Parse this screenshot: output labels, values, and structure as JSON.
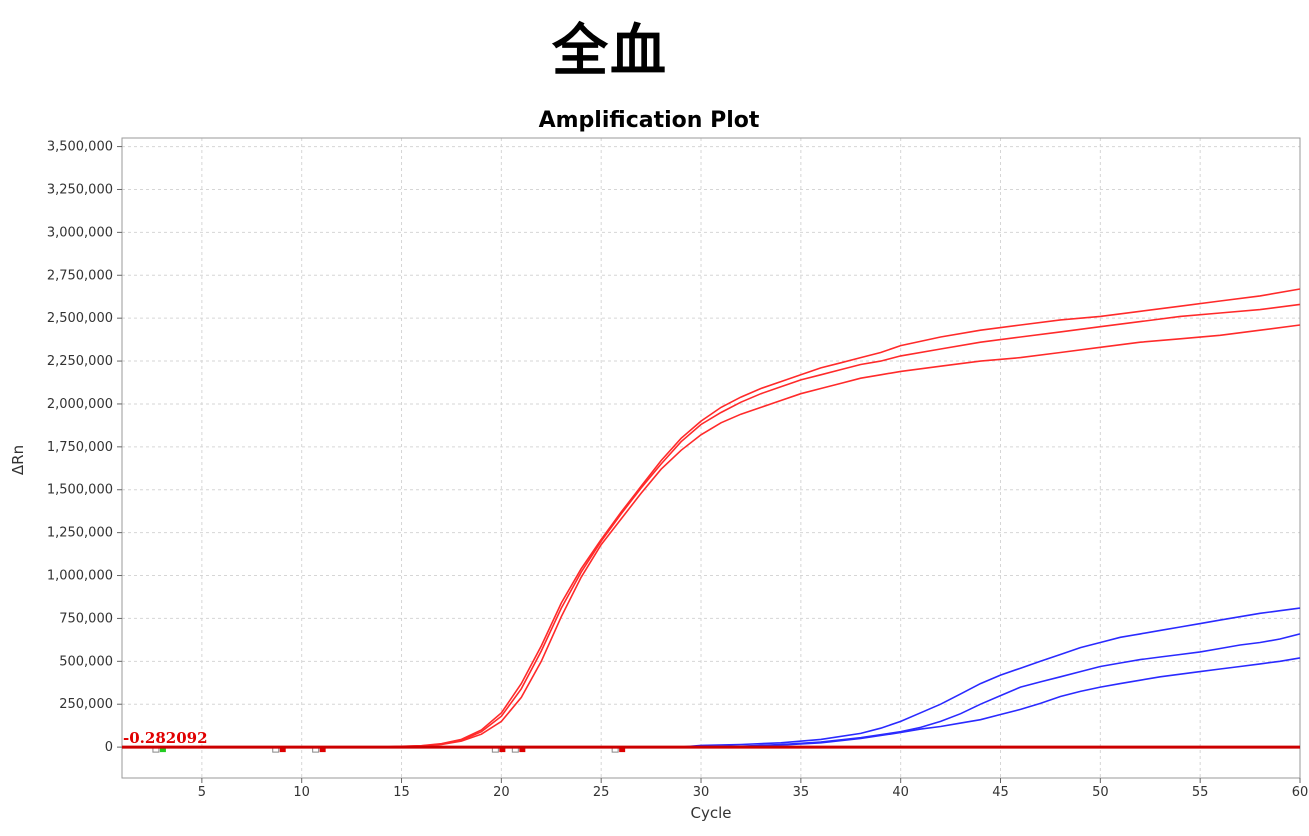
{
  "page_title": "全血",
  "chart_data": {
    "type": "line",
    "title": "Amplification Plot",
    "xlabel": "Cycle",
    "ylabel": "ΔRn",
    "xlim": [
      1,
      60
    ],
    "ylim": [
      -180000,
      3550000
    ],
    "x_ticks": [
      5,
      10,
      15,
      20,
      25,
      30,
      35,
      40,
      45,
      50,
      55,
      60
    ],
    "y_ticks": [
      0,
      250000,
      500000,
      750000,
      1000000,
      1250000,
      1500000,
      1750000,
      2000000,
      2250000,
      2500000,
      2750000,
      3000000,
      3250000,
      3500000
    ],
    "y_tick_labels": [
      "0",
      "250,000",
      "500,000",
      "750,000",
      "1,000,000",
      "1,250,000",
      "1,500,000",
      "1,750,000",
      "2,000,000",
      "2,250,000",
      "2,500,000",
      "2,750,000",
      "3,000,000",
      "3,250,000",
      "3,500,000"
    ],
    "grid": true,
    "threshold": {
      "label": "-0.282092",
      "value": 0,
      "color": "#cc0000"
    },
    "series": [
      {
        "color": "#ff2a2a",
        "points": [
          [
            1,
            0
          ],
          [
            14,
            0
          ],
          [
            15,
            5000
          ],
          [
            16,
            8000
          ],
          [
            17,
            20000
          ],
          [
            18,
            45000
          ],
          [
            19,
            100000
          ],
          [
            20,
            200000
          ],
          [
            21,
            370000
          ],
          [
            22,
            590000
          ],
          [
            23,
            840000
          ],
          [
            24,
            1040000
          ],
          [
            25,
            1210000
          ],
          [
            26,
            1370000
          ],
          [
            27,
            1520000
          ],
          [
            28,
            1670000
          ],
          [
            29,
            1800000
          ],
          [
            30,
            1900000
          ],
          [
            31,
            1980000
          ],
          [
            32,
            2040000
          ],
          [
            33,
            2090000
          ],
          [
            34,
            2130000
          ],
          [
            35,
            2170000
          ],
          [
            36,
            2210000
          ],
          [
            37,
            2240000
          ],
          [
            38,
            2270000
          ],
          [
            39,
            2300000
          ],
          [
            40,
            2340000
          ],
          [
            42,
            2390000
          ],
          [
            44,
            2430000
          ],
          [
            46,
            2460000
          ],
          [
            48,
            2490000
          ],
          [
            50,
            2510000
          ],
          [
            52,
            2540000
          ],
          [
            54,
            2570000
          ],
          [
            56,
            2600000
          ],
          [
            58,
            2630000
          ],
          [
            60,
            2670000
          ]
        ]
      },
      {
        "color": "#ff2a2a",
        "points": [
          [
            1,
            0
          ],
          [
            14,
            0
          ],
          [
            15,
            4000
          ],
          [
            16,
            7000
          ],
          [
            17,
            18000
          ],
          [
            18,
            40000
          ],
          [
            19,
            90000
          ],
          [
            20,
            180000
          ],
          [
            21,
            340000
          ],
          [
            22,
            560000
          ],
          [
            23,
            810000
          ],
          [
            24,
            1020000
          ],
          [
            25,
            1200000
          ],
          [
            26,
            1360000
          ],
          [
            27,
            1510000
          ],
          [
            28,
            1650000
          ],
          [
            29,
            1780000
          ],
          [
            30,
            1880000
          ],
          [
            31,
            1950000
          ],
          [
            32,
            2010000
          ],
          [
            33,
            2060000
          ],
          [
            34,
            2100000
          ],
          [
            35,
            2140000
          ],
          [
            36,
            2170000
          ],
          [
            37,
            2200000
          ],
          [
            38,
            2230000
          ],
          [
            39,
            2250000
          ],
          [
            40,
            2280000
          ],
          [
            42,
            2320000
          ],
          [
            44,
            2360000
          ],
          [
            46,
            2390000
          ],
          [
            48,
            2420000
          ],
          [
            50,
            2450000
          ],
          [
            52,
            2480000
          ],
          [
            54,
            2510000
          ],
          [
            56,
            2530000
          ],
          [
            58,
            2550000
          ],
          [
            60,
            2580000
          ]
        ]
      },
      {
        "color": "#ff2a2a",
        "points": [
          [
            1,
            0
          ],
          [
            14,
            0
          ],
          [
            15,
            3000
          ],
          [
            16,
            6000
          ],
          [
            17,
            15000
          ],
          [
            18,
            35000
          ],
          [
            19,
            75000
          ],
          [
            20,
            150000
          ],
          [
            21,
            290000
          ],
          [
            22,
            500000
          ],
          [
            23,
            760000
          ],
          [
            24,
            990000
          ],
          [
            25,
            1180000
          ],
          [
            26,
            1330000
          ],
          [
            27,
            1480000
          ],
          [
            28,
            1620000
          ],
          [
            29,
            1730000
          ],
          [
            30,
            1820000
          ],
          [
            31,
            1890000
          ],
          [
            32,
            1940000
          ],
          [
            33,
            1980000
          ],
          [
            34,
            2020000
          ],
          [
            35,
            2060000
          ],
          [
            36,
            2090000
          ],
          [
            37,
            2120000
          ],
          [
            38,
            2150000
          ],
          [
            39,
            2170000
          ],
          [
            40,
            2190000
          ],
          [
            42,
            2220000
          ],
          [
            44,
            2250000
          ],
          [
            46,
            2270000
          ],
          [
            48,
            2300000
          ],
          [
            50,
            2330000
          ],
          [
            52,
            2360000
          ],
          [
            54,
            2380000
          ],
          [
            56,
            2400000
          ],
          [
            58,
            2430000
          ],
          [
            60,
            2460000
          ]
        ]
      },
      {
        "color": "#2a2aff",
        "points": [
          [
            1,
            0
          ],
          [
            29,
            0
          ],
          [
            30,
            10000
          ],
          [
            32,
            15000
          ],
          [
            34,
            25000
          ],
          [
            36,
            45000
          ],
          [
            38,
            80000
          ],
          [
            39,
            110000
          ],
          [
            40,
            150000
          ],
          [
            41,
            200000
          ],
          [
            42,
            250000
          ],
          [
            43,
            310000
          ],
          [
            44,
            370000
          ],
          [
            45,
            420000
          ],
          [
            46,
            460000
          ],
          [
            47,
            500000
          ],
          [
            48,
            540000
          ],
          [
            49,
            580000
          ],
          [
            50,
            610000
          ],
          [
            51,
            640000
          ],
          [
            52,
            660000
          ],
          [
            53,
            680000
          ],
          [
            54,
            700000
          ],
          [
            55,
            720000
          ],
          [
            56,
            740000
          ],
          [
            57,
            760000
          ],
          [
            58,
            780000
          ],
          [
            59,
            795000
          ],
          [
            60,
            810000
          ]
        ]
      },
      {
        "color": "#2a2aff",
        "points": [
          [
            1,
            0
          ],
          [
            30,
            0
          ],
          [
            32,
            5000
          ],
          [
            34,
            15000
          ],
          [
            36,
            30000
          ],
          [
            38,
            55000
          ],
          [
            40,
            90000
          ],
          [
            41,
            115000
          ],
          [
            42,
            150000
          ],
          [
            43,
            195000
          ],
          [
            44,
            250000
          ],
          [
            45,
            300000
          ],
          [
            46,
            350000
          ],
          [
            47,
            380000
          ],
          [
            48,
            410000
          ],
          [
            49,
            440000
          ],
          [
            50,
            470000
          ],
          [
            51,
            490000
          ],
          [
            52,
            510000
          ],
          [
            53,
            525000
          ],
          [
            54,
            540000
          ],
          [
            55,
            555000
          ],
          [
            56,
            575000
          ],
          [
            57,
            595000
          ],
          [
            58,
            610000
          ],
          [
            59,
            630000
          ],
          [
            60,
            660000
          ]
        ]
      },
      {
        "color": "#2a2aff",
        "points": [
          [
            1,
            0
          ],
          [
            30,
            0
          ],
          [
            32,
            5000
          ],
          [
            34,
            12000
          ],
          [
            36,
            25000
          ],
          [
            38,
            50000
          ],
          [
            40,
            85000
          ],
          [
            41,
            105000
          ],
          [
            42,
            120000
          ],
          [
            43,
            140000
          ],
          [
            44,
            160000
          ],
          [
            45,
            190000
          ],
          [
            46,
            220000
          ],
          [
            47,
            255000
          ],
          [
            48,
            295000
          ],
          [
            49,
            325000
          ],
          [
            50,
            350000
          ],
          [
            51,
            370000
          ],
          [
            52,
            390000
          ],
          [
            53,
            410000
          ],
          [
            54,
            425000
          ],
          [
            55,
            440000
          ],
          [
            56,
            455000
          ],
          [
            57,
            470000
          ],
          [
            58,
            485000
          ],
          [
            59,
            500000
          ],
          [
            60,
            520000
          ]
        ]
      }
    ],
    "markers": [
      {
        "cycle": 3,
        "color": "#22cc22"
      },
      {
        "cycle": 9,
        "color": "#dd0000"
      },
      {
        "cycle": 11,
        "color": "#dd0000"
      },
      {
        "cycle": 20,
        "color": "#dd0000"
      },
      {
        "cycle": 21,
        "color": "#dd0000"
      },
      {
        "cycle": 26,
        "color": "#dd0000"
      }
    ]
  }
}
